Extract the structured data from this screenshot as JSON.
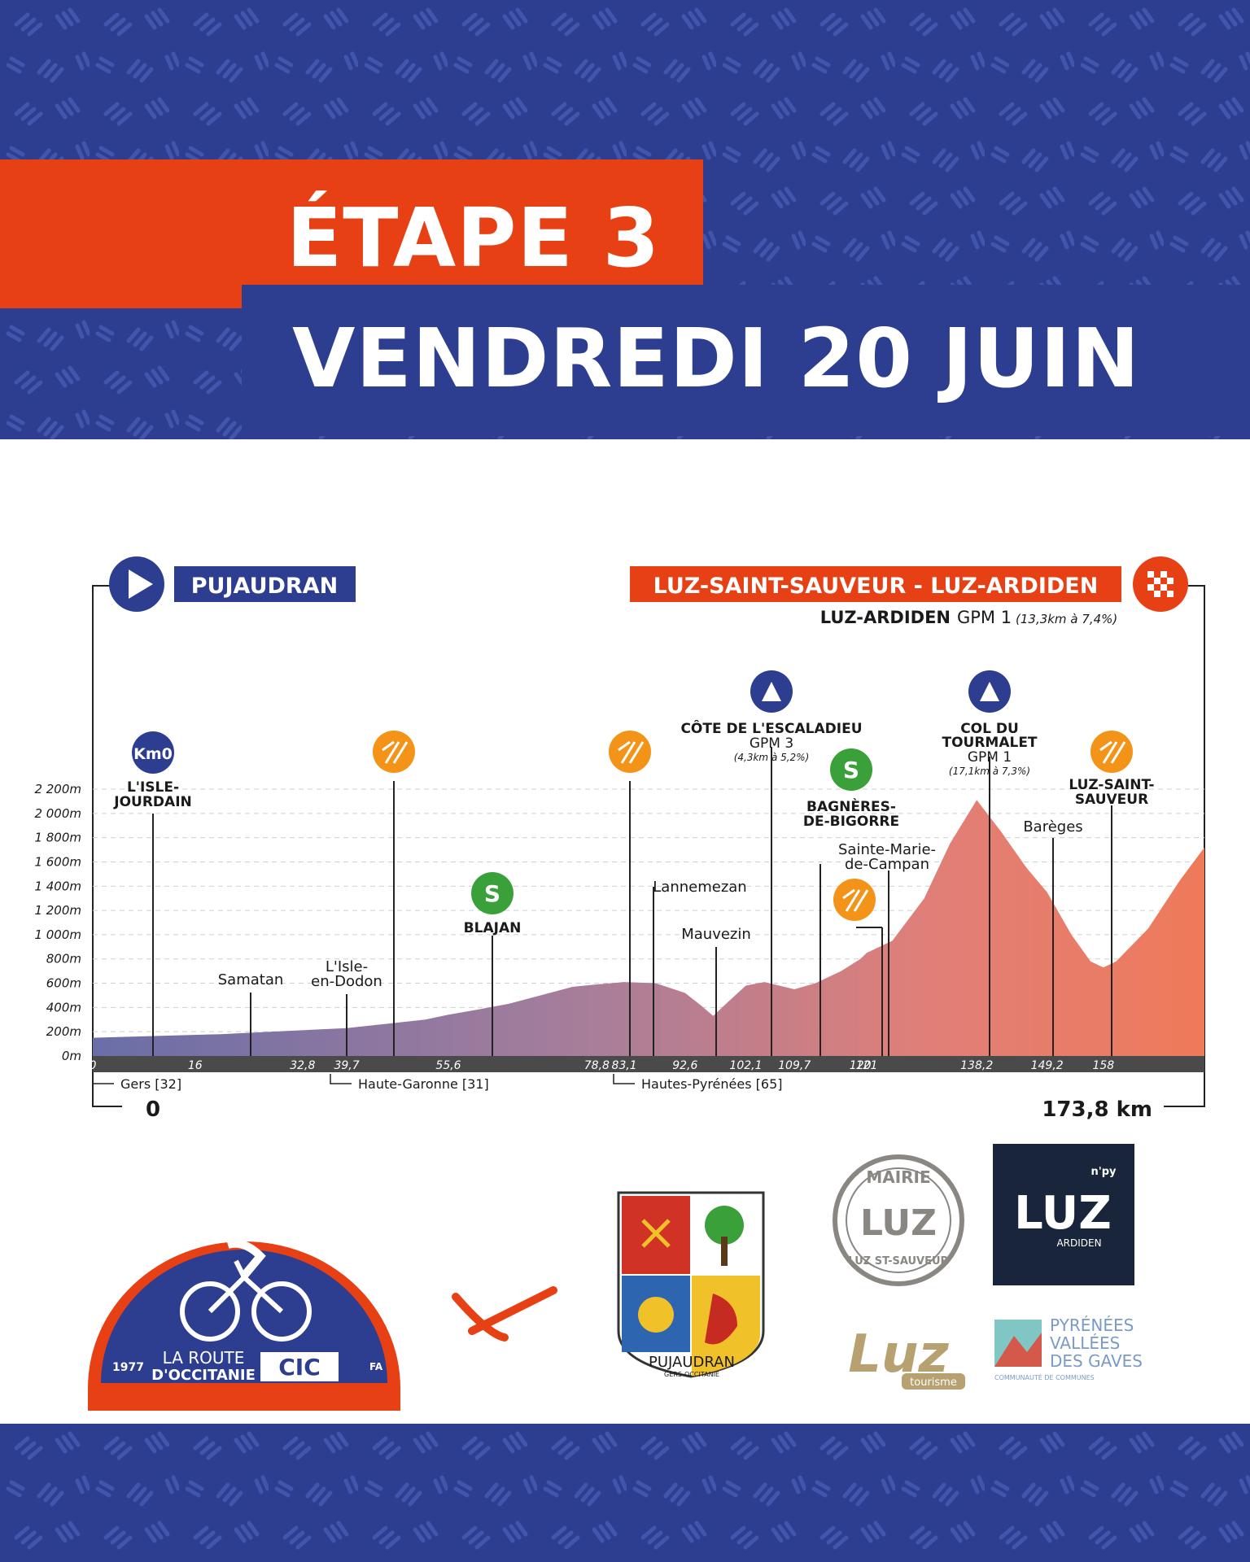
{
  "title": {
    "stage": "ÉTAPE 3",
    "date": "VENDREDI 20 JUIN"
  },
  "route": {
    "start_city": "PUJAUDRAN",
    "finish_city": "LUZ-SAINT-SAUVEUR - LUZ-ARDIDEN",
    "final_climb_name": "LUZ-ARDIDEN",
    "final_climb_cat": "GPM 1",
    "final_climb_detail": "(13,3km à 7,4%)",
    "start_total": "0",
    "total_distance": "173,8 km"
  },
  "altitude_labels": [
    "0m",
    "200m",
    "400m",
    "600m",
    "800m",
    "1 000m",
    "1 200m",
    "1 400m",
    "1 600m",
    "1 800m",
    "2 000m",
    "2 200m"
  ],
  "profile_points": [
    [
      0,
      150
    ],
    [
      10,
      165
    ],
    [
      20,
      180
    ],
    [
      30,
      205
    ],
    [
      39.7,
      230
    ],
    [
      45,
      260
    ],
    [
      52,
      300
    ],
    [
      55.6,
      340
    ],
    [
      60,
      380
    ],
    [
      65,
      430
    ],
    [
      70,
      500
    ],
    [
      75,
      570
    ],
    [
      78.8,
      590
    ],
    [
      83.1,
      610
    ],
    [
      88,
      600
    ],
    [
      92.6,
      520
    ],
    [
      95,
      420
    ],
    [
      97,
      330
    ],
    [
      99,
      430
    ],
    [
      102.1,
      580
    ],
    [
      105,
      610
    ],
    [
      109.7,
      550
    ],
    [
      113,
      600
    ],
    [
      117,
      700
    ],
    [
      120,
      800
    ],
    [
      121,
      850
    ],
    [
      125,
      950
    ],
    [
      130,
      1300
    ],
    [
      134,
      1750
    ],
    [
      138.2,
      2110
    ],
    [
      142,
      1850
    ],
    [
      146,
      1550
    ],
    [
      149.2,
      1350
    ],
    [
      153,
      1000
    ],
    [
      156,
      780
    ],
    [
      158,
      730
    ],
    [
      160,
      780
    ],
    [
      165,
      1050
    ],
    [
      170,
      1450
    ],
    [
      173.8,
      1720
    ]
  ],
  "km_ticks": [
    "0",
    "16",
    "32,8",
    "39,7",
    "55,6",
    "78,8",
    "83,1",
    "92,6",
    "102,1",
    "109,7",
    "120",
    "121",
    "138,2",
    "149,2",
    "158"
  ],
  "km_values": [
    0,
    16,
    32.8,
    39.7,
    55.6,
    78.8,
    83.1,
    92.6,
    102.1,
    109.7,
    120,
    121,
    138.2,
    149.2,
    158
  ],
  "departments": [
    {
      "label": "Gers [32]"
    },
    {
      "label": "Haute-Garonne [31]"
    },
    {
      "label": "Hautes-Pyrénées [65]"
    }
  ],
  "places": {
    "km0_badge": "Km0",
    "isle_jourdain_1": "L'ISLE-",
    "isle_jourdain_2": "JOURDAIN",
    "samatan": "Samatan",
    "isle_dodon_1": "L'Isle-",
    "isle_dodon_2": "en-Dodon",
    "blajan": "BLAJAN",
    "sprint_letter": "S",
    "lannemezan": "Lannemezan",
    "mauvezin": "Mauvezin",
    "escaladieu_name": "CÔTE DE L'ESCALADIEU",
    "escaladieu_cat": "GPM 3",
    "escaladieu_detail": "(4,3km à 5,2%)",
    "bagneres_1": "BAGNÈRES-",
    "bagneres_2": "DE-BIGORRE",
    "ste_marie_1": "Sainte-Marie-",
    "ste_marie_2": "de-Campan",
    "tourmalet_1": "COL DU",
    "tourmalet_2": "TOURMALET",
    "tourmalet_cat": "GPM 1",
    "tourmalet_detail": "(17,1km à 7,3%)",
    "bareges": "Barèges",
    "luz_ss_1": "LUZ-SAINT-",
    "luz_ss_2": "SAUVEUR"
  },
  "logos": {
    "route_year": "1977",
    "route_name_1": "LA ROUTE",
    "route_name_2": "D'OCCITANIE",
    "route_fa": "FA",
    "cic": "CIC",
    "pujaudran_name": "PUJAUDRAN",
    "pujaudran_sub": "GERS-OCCITANIE",
    "mairie_top": "MAIRIE",
    "mairie_mid": "LUZ",
    "mairie_bottom": "LUZ ST-SAUVEUR",
    "luz_npy": "LUZ",
    "luz_npy_tag": "n'py",
    "luz_npy_sub": "ARDIDEN",
    "luz_tourisme": "Luz",
    "luz_tourisme_sub": "tourisme",
    "pvg_1": "PYRÉNÉES",
    "pvg_2": "VALLÉES",
    "pvg_3": "DES GAVES",
    "pvg_sub": "COMMUNAUTÉ DE COMMUNES"
  },
  "colors": {
    "blue": "#2d3e90",
    "red": "#e64014",
    "orange": "#f39418",
    "green": "#3aa039",
    "pattern": "#3e51a8"
  }
}
